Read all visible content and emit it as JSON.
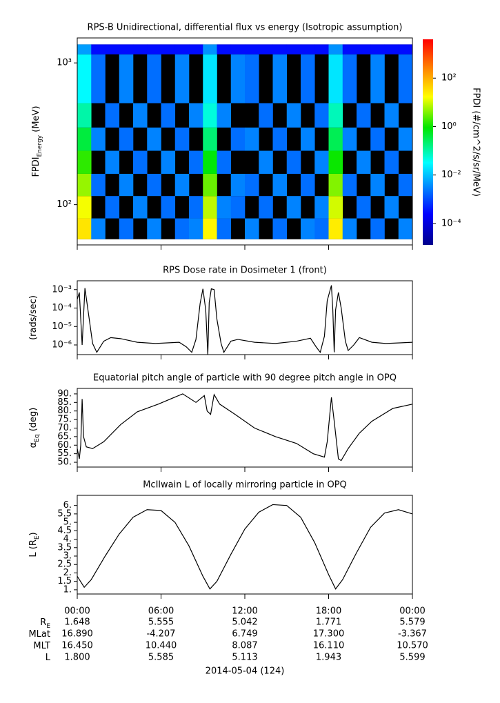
{
  "chart_data": [
    {
      "type": "heatmap",
      "title": "RPS-B  Unidirectional, differential flux vs energy (Isotropic assumption)",
      "ylabel": "FPDI",
      "ylabel_sub": "Energy",
      "ylabel_unit": " (MeV)",
      "ylog": true,
      "xlim": [
        0,
        24
      ],
      "xticks": [
        0,
        6,
        12,
        18,
        24
      ],
      "ylim": [
        52,
        1500
      ],
      "yticks": [
        {
          "value": 100,
          "label": "10²"
        },
        {
          "value": 1000,
          "label": "10³"
        }
      ],
      "xbins": [
        0,
        1,
        2,
        3,
        4,
        5,
        6,
        7,
        8,
        9,
        10,
        11,
        12,
        13,
        14,
        15,
        16,
        17,
        18,
        19,
        20,
        21,
        22,
        23,
        24
      ],
      "ybins": [
        57,
        80,
        115,
        165,
        240,
        350,
        520,
        1150,
        1350
      ],
      "z": [
        [
          30,
          0.003,
          null,
          0.002,
          null,
          0.003,
          null,
          0.002,
          0.003,
          20,
          0.002,
          null,
          0.003,
          null,
          0.002,
          null,
          0.003,
          0.002,
          25,
          0.003,
          null,
          0.002,
          null,
          0.003
        ],
        [
          15,
          null,
          0.002,
          null,
          0.003,
          null,
          0.002,
          null,
          0.002,
          8,
          0.003,
          0.002,
          null,
          0.002,
          null,
          0.003,
          null,
          0.003,
          10,
          null,
          0.002,
          null,
          0.003,
          null
        ],
        [
          5,
          0.002,
          null,
          0.003,
          null,
          0.002,
          null,
          0.003,
          null,
          3,
          null,
          0.003,
          0.002,
          null,
          0.003,
          null,
          0.002,
          null,
          4,
          0.002,
          null,
          0.003,
          null,
          0.002
        ],
        [
          1.5,
          null,
          0.003,
          null,
          0.002,
          null,
          0.003,
          null,
          0.002,
          0.8,
          0.002,
          null,
          null,
          0.003,
          null,
          0.002,
          null,
          0.003,
          1,
          null,
          0.003,
          null,
          0.002,
          null
        ],
        [
          0.4,
          0.003,
          null,
          0.002,
          null,
          0.003,
          null,
          0.002,
          null,
          0.2,
          null,
          0.002,
          0.003,
          null,
          0.002,
          null,
          0.003,
          null,
          0.3,
          0.003,
          null,
          0.002,
          null,
          0.003
        ],
        [
          0.1,
          null,
          0.002,
          null,
          0.003,
          null,
          0.002,
          null,
          0.003,
          0.05,
          0.003,
          null,
          null,
          0.002,
          null,
          0.003,
          null,
          0.002,
          0.08,
          null,
          0.002,
          null,
          0.003,
          null
        ],
        [
          0.03,
          0.002,
          null,
          0.003,
          null,
          0.002,
          null,
          0.003,
          null,
          0.02,
          null,
          0.003,
          0.002,
          null,
          0.003,
          null,
          0.002,
          null,
          0.02,
          0.002,
          null,
          0.003,
          null,
          0.002
        ],
        [
          0.005,
          0.0003,
          0.0003,
          0.0003,
          0.0003,
          0.0003,
          0.0003,
          0.0003,
          0.0003,
          0.004,
          0.0003,
          0.0003,
          0.0003,
          0.0003,
          0.0003,
          0.0003,
          0.0003,
          0.0003,
          0.004,
          0.0003,
          0.0003,
          0.0003,
          0.0003,
          0.0003
        ]
      ],
      "zlim": [
        1.3e-05,
        4000
      ],
      "zlog": true,
      "background": "#000000",
      "colorbar_label": "FPDI (#/cm^2/s/sr/MeV)",
      "zticks": [
        {
          "value": 0.0001,
          "label": "10⁻⁴"
        },
        {
          "value": 0.01,
          "label": "10⁻²"
        },
        {
          "value": 1,
          "label": "10⁰"
        },
        {
          "value": 100,
          "label": "10²"
        }
      ]
    },
    {
      "type": "line",
      "title": "RPS  Dose rate in Dosimeter 1 (front)",
      "ylabel": "(rads/sec)",
      "ylog": true,
      "color": "#000000",
      "xlim": [
        0,
        24
      ],
      "xticks": [
        0,
        6,
        12,
        18,
        24
      ],
      "ylim": [
        3e-07,
        0.003
      ],
      "yticks": [
        {
          "value": 1e-06,
          "label": "10⁻⁶"
        },
        {
          "value": 1e-05,
          "label": "10⁻⁵"
        },
        {
          "value": 0.0001,
          "label": "10⁻⁴"
        },
        {
          "value": 0.001,
          "label": "10⁻³"
        }
      ],
      "x": [
        0,
        0.15,
        0.35,
        0.55,
        0.9,
        1.1,
        1.4,
        1.9,
        2.4,
        3.1,
        4.3,
        5.6,
        7.3,
        7.8,
        8.2,
        8.5,
        8.8,
        9.0,
        9.2,
        9.35,
        9.45,
        9.6,
        9.8,
        10.0,
        10.3,
        10.5,
        11.0,
        11.5,
        12.7,
        14.2,
        15.7,
        16.7,
        17.1,
        17.4,
        17.7,
        17.9,
        18.2,
        18.3,
        18.4,
        18.5,
        18.7,
        18.9,
        19.2,
        19.4,
        19.8,
        20.2,
        21.1,
        22.1,
        23.1,
        24
      ],
      "values": [
        0.0003,
        0.0007,
        1e-06,
        0.0012,
        1.5e-05,
        1.2e-06,
        4e-07,
        1.6e-06,
        2.5e-06,
        2.2e-06,
        1.4e-06,
        1.2e-06,
        1.4e-06,
        8e-07,
        4e-07,
        2e-06,
        0.00018,
        0.0011,
        8e-05,
        3e-07,
        0.0002,
        0.0011,
        0.001,
        2.5e-05,
        1.2e-06,
        4e-07,
        1.6e-06,
        2e-06,
        1.4e-06,
        1.2e-06,
        1.6e-06,
        2.3e-06,
        8e-07,
        4e-07,
        3e-06,
        0.00025,
        0.0017,
        8e-05,
        4e-07,
        8e-05,
        0.0007,
        0.0001,
        1.6e-06,
        5e-07,
        1e-06,
        2.5e-06,
        1.4e-06,
        1.2e-06,
        1.3e-06,
        1.4e-06
      ]
    },
    {
      "type": "line",
      "title": "Equatorial pitch angle of particle with 90 degree pitch angle in OPQ",
      "ylabel": "α",
      "ylabel_sub": "Eq",
      "ylabel_unit": " (deg)",
      "color": "#000000",
      "xlim": [
        0,
        24
      ],
      "xticks": [
        0,
        6,
        12,
        18,
        24
      ],
      "ylim": [
        47.2,
        93.2
      ],
      "yticks": [
        {
          "value": 50,
          "label": "50."
        },
        {
          "value": 55,
          "label": "55."
        },
        {
          "value": 60,
          "label": "60."
        },
        {
          "value": 65,
          "label": "65."
        },
        {
          "value": 70,
          "label": "70."
        },
        {
          "value": 75,
          "label": "75."
        },
        {
          "value": 80,
          "label": "80."
        },
        {
          "value": 85,
          "label": "85."
        },
        {
          "value": 90,
          "label": "90."
        }
      ],
      "x": [
        0,
        0.15,
        0.25,
        0.35,
        0.45,
        0.65,
        1.1,
        1.9,
        3.1,
        4.3,
        5.8,
        7.55,
        8.5,
        9.1,
        9.3,
        9.55,
        9.8,
        10.2,
        11.3,
        12.7,
        14.2,
        15.7,
        16.9,
        17.7,
        17.9,
        18.2,
        18.4,
        18.7,
        18.9,
        19.4,
        20.2,
        21.1,
        22.6,
        24
      ],
      "values": [
        58,
        52,
        60,
        87,
        65,
        59,
        58,
        62,
        72,
        79.5,
        84,
        90,
        85,
        89,
        80,
        78,
        89.6,
        84,
        78,
        70,
        65,
        61,
        55,
        53,
        62,
        88,
        74,
        52,
        51,
        58,
        67,
        74,
        81.5,
        84
      ]
    },
    {
      "type": "line",
      "title": "McIlwain L of locally mirroring particle in OPQ",
      "ylabel": "L (R",
      "ylabel_sub": "E",
      "ylabel_unit": ")",
      "color": "#000000",
      "xlim": [
        0,
        24
      ],
      "xticks": [
        {
          "value": 0,
          "label": "00:00"
        },
        {
          "value": 6,
          "label": "06:00"
        },
        {
          "value": 12,
          "label": "12:00"
        },
        {
          "value": 18,
          "label": "18:00"
        },
        {
          "value": 24,
          "label": "00:00"
        }
      ],
      "ylim": [
        0.75,
        6.6
      ],
      "yticks": [
        {
          "value": 1,
          "label": "1."
        },
        1.5,
        {
          "value": 2,
          "label": "2."
        },
        2.5,
        {
          "value": 3,
          "label": "3."
        },
        3.5,
        {
          "value": 4,
          "label": "4."
        },
        4.5,
        {
          "value": 5,
          "label": "5."
        },
        5.5,
        {
          "value": 6,
          "label": "6."
        }
      ],
      "x": [
        0,
        0.5,
        1,
        2,
        3,
        4,
        5,
        6,
        7,
        8,
        9,
        9.5,
        10,
        11,
        12,
        13,
        14,
        15,
        16,
        17,
        18,
        18.5,
        19,
        20,
        21,
        22,
        23,
        24
      ],
      "values": [
        1.8,
        1.15,
        1.6,
        3.0,
        4.3,
        5.3,
        5.75,
        5.7,
        5.0,
        3.6,
        1.8,
        1.05,
        1.5,
        3.1,
        4.6,
        5.6,
        6.05,
        6.0,
        5.3,
        3.8,
        1.9,
        1.05,
        1.6,
        3.2,
        4.7,
        5.55,
        5.75,
        5.5
      ]
    }
  ],
  "ephemeris": {
    "rows": [
      {
        "label": "R",
        "sub": "E",
        "values": [
          "1.648",
          "5.555",
          "5.042",
          "1.771",
          "5.579"
        ]
      },
      {
        "label": "MLat",
        "values": [
          "16.890",
          "-4.207",
          "6.749",
          "17.300",
          "-3.367"
        ]
      },
      {
        "label": "MLT",
        "values": [
          "16.450",
          "10.440",
          "8.087",
          "16.110",
          "10.570"
        ]
      },
      {
        "label": "L",
        "values": [
          "1.800",
          "5.585",
          "5.113",
          "1.943",
          "5.599"
        ]
      }
    ],
    "date": "2014-05-04 (124)"
  }
}
